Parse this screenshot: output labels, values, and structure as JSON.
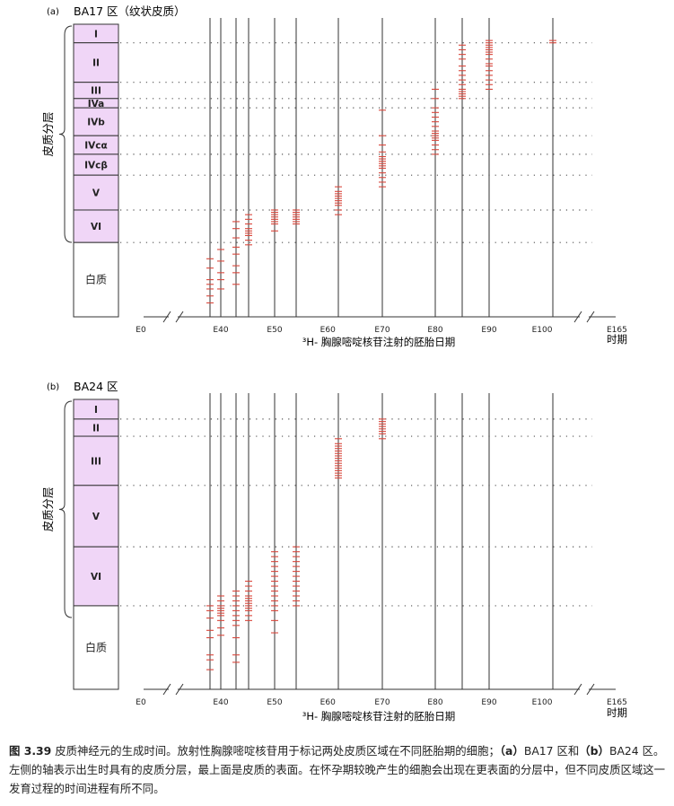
{
  "colors": {
    "layer_fill": "#f0d6f7",
    "mark": "#d9473c",
    "line": "#333333",
    "dots": "#555555"
  },
  "caption": {
    "fig_label": "图 3.39",
    "text_1": " 皮质神经元的生成时间。放射性胸腺嘧啶核苷用于标记两处皮质区域在不同胚胎期的细胞；",
    "part_a": "（a）",
    "text_2": "BA17 区和",
    "part_b": "（b）",
    "text_3": "BA24 区。左侧的轴表示出生时具有的皮质分层，最上面是皮质的表面。在怀孕期较晚产生的细胞会出现在更表面的分层中，但不同皮质区域这一发育过程的时间进程有所不同。"
  },
  "chart_data": [
    {
      "type": "scatter",
      "panel": "(a)",
      "title": "BA17 区（纹状皮质）",
      "ylabel": "皮质分层",
      "xlabel": "³H- 胸腺嘧啶核苷注射的胚胎日期",
      "x_ticks": [
        "E0",
        "E40",
        "E50",
        "E60",
        "E70",
        "E80",
        "E90",
        "E100",
        "E165"
      ],
      "x_tick_values": [
        0,
        40,
        50,
        60,
        70,
        80,
        90,
        100,
        165
      ],
      "x_unit_label": "时期",
      "injection_days": [
        38,
        40,
        43,
        45,
        50,
        54,
        62,
        70,
        80,
        85,
        90,
        102
      ],
      "layers": [
        {
          "name": "I",
          "top": 0,
          "bottom": 8
        },
        {
          "name": "II",
          "top": 8,
          "bottom": 25
        },
        {
          "name": "III",
          "top": 25,
          "bottom": 32
        },
        {
          "name": "IVa",
          "top": 32,
          "bottom": 36
        },
        {
          "name": "IVb",
          "top": 36,
          "bottom": 48
        },
        {
          "name": "IVcα",
          "top": 48,
          "bottom": 56
        },
        {
          "name": "IVcβ",
          "top": 56,
          "bottom": 65
        },
        {
          "name": "V",
          "top": 65,
          "bottom": 80
        },
        {
          "name": "VI",
          "top": 80,
          "bottom": 94
        },
        {
          "name": "白质",
          "top": 94,
          "bottom": 126
        }
      ],
      "labeled_cells": [
        {
          "day": 38,
          "depths": [
            101,
            105,
            110,
            112,
            114,
            117,
            120
          ]
        },
        {
          "day": 40,
          "depths": [
            97,
            102,
            107,
            110,
            114
          ]
        },
        {
          "day": 43,
          "depths": [
            85,
            88,
            92,
            96,
            99,
            104,
            107,
            112
          ]
        },
        {
          "day": 45,
          "depths": [
            82,
            84,
            86,
            88,
            89,
            90,
            91,
            93,
            95
          ]
        },
        {
          "day": 50,
          "depths": [
            80,
            81,
            82,
            83,
            84,
            85,
            86,
            89
          ]
        },
        {
          "day": 54,
          "depths": [
            80,
            81,
            82,
            83,
            84,
            85,
            86
          ]
        },
        {
          "day": 62,
          "depths": [
            70,
            72,
            73,
            74,
            75,
            76,
            77,
            78,
            80,
            82
          ]
        },
        {
          "day": 70,
          "depths": [
            37,
            48,
            52,
            55,
            57,
            58,
            59,
            60,
            61,
            62,
            64,
            66,
            68,
            70
          ]
        },
        {
          "day": 80,
          "depths": [
            28,
            32,
            36,
            38,
            40,
            42,
            44,
            46,
            47,
            48,
            49,
            50,
            52,
            54,
            56
          ]
        },
        {
          "day": 85,
          "depths": [
            9,
            11,
            13,
            15,
            18,
            20,
            22,
            24,
            26,
            28,
            29,
            30,
            31,
            32
          ]
        },
        {
          "day": 90,
          "depths": [
            7,
            8,
            9,
            10,
            11,
            12,
            13,
            15,
            17,
            18,
            20,
            22,
            24,
            26,
            28
          ]
        },
        {
          "day": 102,
          "depths": [
            7,
            8
          ]
        }
      ]
    },
    {
      "type": "scatter",
      "panel": "(b)",
      "title": "BA24 区",
      "ylabel": "皮质分层",
      "xlabel": "³H- 胸腺嘧啶核苷注射的胚胎日期",
      "x_ticks": [
        "E0",
        "E40",
        "E50",
        "E60",
        "E70",
        "E80",
        "E90",
        "E100",
        "E165"
      ],
      "x_tick_values": [
        0,
        40,
        50,
        60,
        70,
        80,
        90,
        100,
        165
      ],
      "x_unit_label": "时期",
      "injection_days": [
        38,
        40,
        43,
        45,
        50,
        54,
        62,
        70,
        80,
        85,
        90,
        102
      ],
      "layers": [
        {
          "name": "I",
          "top": 0,
          "bottom": 8
        },
        {
          "name": "II",
          "top": 8,
          "bottom": 15
        },
        {
          "name": "III",
          "top": 15,
          "bottom": 35
        },
        {
          "name": "V",
          "top": 35,
          "bottom": 60
        },
        {
          "name": "VI",
          "top": 60,
          "bottom": 84
        },
        {
          "name": "白质",
          "top": 84,
          "bottom": 118
        }
      ],
      "labeled_cells": [
        {
          "day": 38,
          "depths": [
            84,
            86,
            89,
            94,
            97,
            104,
            106,
            110
          ]
        },
        {
          "day": 40,
          "depths": [
            80,
            82,
            84,
            85,
            86,
            87,
            88,
            90,
            93,
            96
          ]
        },
        {
          "day": 43,
          "depths": [
            78,
            80,
            82,
            84,
            86,
            88,
            90,
            92,
            97,
            104,
            107
          ]
        },
        {
          "day": 45,
          "depths": [
            74,
            76,
            78,
            80,
            81,
            82,
            83,
            84,
            85,
            86,
            88,
            90
          ]
        },
        {
          "day": 50,
          "depths": [
            62,
            64,
            66,
            68,
            70,
            72,
            74,
            76,
            78,
            80,
            82,
            84,
            86,
            90,
            95
          ]
        },
        {
          "day": 54,
          "depths": [
            60,
            62,
            64,
            66,
            68,
            70,
            72,
            74,
            76,
            78,
            80,
            82,
            84
          ]
        },
        {
          "day": 62,
          "depths": [
            16,
            18,
            19,
            20,
            21,
            22,
            23,
            24,
            25,
            26,
            27,
            28,
            29,
            30,
            31,
            32
          ]
        },
        {
          "day": 70,
          "depths": [
            8,
            9,
            10,
            11,
            12,
            13,
            14,
            16
          ]
        }
      ]
    }
  ]
}
